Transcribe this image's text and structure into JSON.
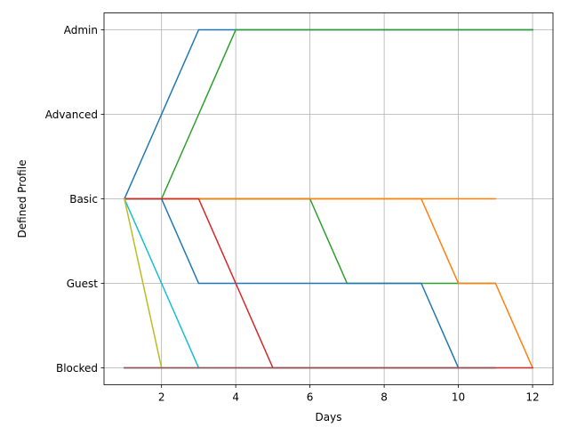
{
  "chart_data": {
    "type": "line",
    "title": "",
    "xlabel": "Days",
    "ylabel": "Defined Profile",
    "xlim": [
      0.45,
      12.55
    ],
    "ylim": [
      -0.2,
      4.2
    ],
    "xticks": [
      2,
      4,
      6,
      8,
      10,
      12
    ],
    "yticks": [
      {
        "value": 0,
        "label": "Blocked"
      },
      {
        "value": 1,
        "label": "Guest"
      },
      {
        "value": 2,
        "label": "Basic"
      },
      {
        "value": 3,
        "label": "Advanced"
      },
      {
        "value": 4,
        "label": "Admin"
      }
    ],
    "grid": true,
    "legend": "none",
    "series": [
      {
        "color": "#1f77b4",
        "x": [
          1,
          2,
          3,
          4,
          5,
          6,
          7,
          8,
          9,
          10,
          11,
          12
        ],
        "y": [
          2,
          3,
          4,
          4,
          4,
          4,
          4,
          4,
          4,
          4,
          4,
          4
        ]
      },
      {
        "color": "#2ca02c",
        "x": [
          1,
          2,
          3,
          4,
          5,
          6,
          7,
          8,
          9,
          10,
          11,
          12
        ],
        "y": [
          2,
          2,
          3,
          4,
          4,
          4,
          4,
          4,
          4,
          4,
          4,
          4
        ]
      },
      {
        "color": "#ff7f0e",
        "x": [
          1,
          2,
          3,
          4,
          5,
          6,
          7,
          8,
          9,
          10,
          11
        ],
        "y": [
          2,
          2,
          2,
          2,
          2,
          2,
          2,
          2,
          2,
          2,
          2
        ]
      },
      {
        "color": "#2ca02c",
        "x": [
          1,
          2,
          3,
          4,
          5,
          6,
          7,
          8,
          9,
          10,
          11
        ],
        "y": [
          2,
          2,
          2,
          2,
          2,
          2,
          1,
          1,
          1,
          1,
          1
        ]
      },
      {
        "color": "#ff7f0e",
        "x": [
          1,
          2,
          3,
          4,
          5,
          6,
          7,
          8,
          9,
          10,
          11,
          12
        ],
        "y": [
          2,
          2,
          2,
          2,
          2,
          2,
          2,
          2,
          2,
          1,
          1,
          0
        ]
      },
      {
        "color": "#1f77b4",
        "x": [
          1,
          2,
          3,
          4,
          5,
          6,
          7,
          8,
          9,
          10
        ],
        "y": [
          2,
          2,
          1,
          1,
          1,
          1,
          1,
          1,
          1,
          0
        ]
      },
      {
        "color": "#d62728",
        "x": [
          1,
          2,
          3,
          4,
          5,
          6,
          7,
          8,
          9,
          10,
          11,
          12
        ],
        "y": [
          2,
          2,
          2,
          1,
          0,
          0,
          0,
          0,
          0,
          0,
          0,
          0
        ]
      },
      {
        "color": "#17becf",
        "x": [
          1,
          2,
          3
        ],
        "y": [
          2,
          1,
          0
        ]
      },
      {
        "color": "#bcbd22",
        "x": [
          1,
          2
        ],
        "y": [
          2,
          0
        ]
      },
      {
        "color": "#9467bd",
        "x": [
          1,
          2,
          3,
          4,
          5,
          6,
          7,
          8,
          9,
          10,
          11
        ],
        "y": [
          0,
          0,
          0,
          0,
          0,
          0,
          0,
          0,
          0,
          0,
          0
        ]
      },
      {
        "color": "#8c564b",
        "x": [
          1,
          2,
          3,
          4,
          5,
          6,
          7,
          8,
          9,
          10,
          11
        ],
        "y": [
          0,
          0,
          0,
          0,
          0,
          0,
          0,
          0,
          0,
          0,
          0
        ]
      }
    ]
  }
}
